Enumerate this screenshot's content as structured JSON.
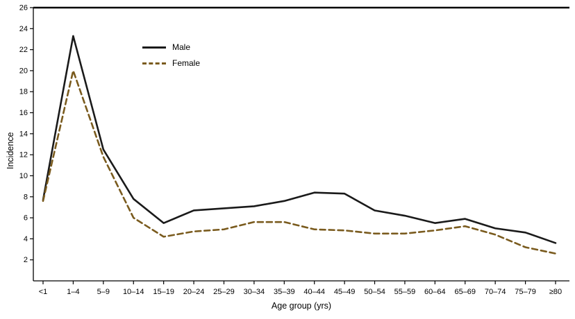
{
  "chart_data": {
    "type": "line",
    "categories": [
      "<1",
      "1–4",
      "5–9",
      "10–14",
      "15–19",
      "20–24",
      "25–29",
      "30–34",
      "35–39",
      "40–44",
      "45–49",
      "50–54",
      "55–59",
      "60–64",
      "65–69",
      "70–74",
      "75–79",
      "≥80"
    ],
    "series": [
      {
        "name": "Male",
        "color": "#1a1a1a",
        "dash": "solid",
        "values": [
          7.7,
          23.3,
          12.5,
          7.8,
          5.5,
          6.7,
          6.9,
          7.1,
          7.6,
          8.4,
          8.3,
          6.7,
          6.2,
          5.5,
          5.9,
          5.0,
          4.6,
          3.6
        ]
      },
      {
        "name": "Female",
        "color": "#7a5b1e",
        "dash": "dashed",
        "values": [
          7.6,
          20.0,
          11.8,
          6.0,
          4.2,
          4.7,
          4.9,
          5.6,
          5.6,
          4.9,
          4.8,
          4.5,
          4.5,
          4.8,
          5.2,
          4.4,
          3.2,
          2.6
        ]
      }
    ],
    "title": "",
    "xlabel": "Age group (yrs)",
    "ylabel": "Incidence",
    "ylim": [
      0,
      26
    ],
    "ytick_step": 2,
    "legend_position": "upper-left-inside",
    "grid": false
  }
}
